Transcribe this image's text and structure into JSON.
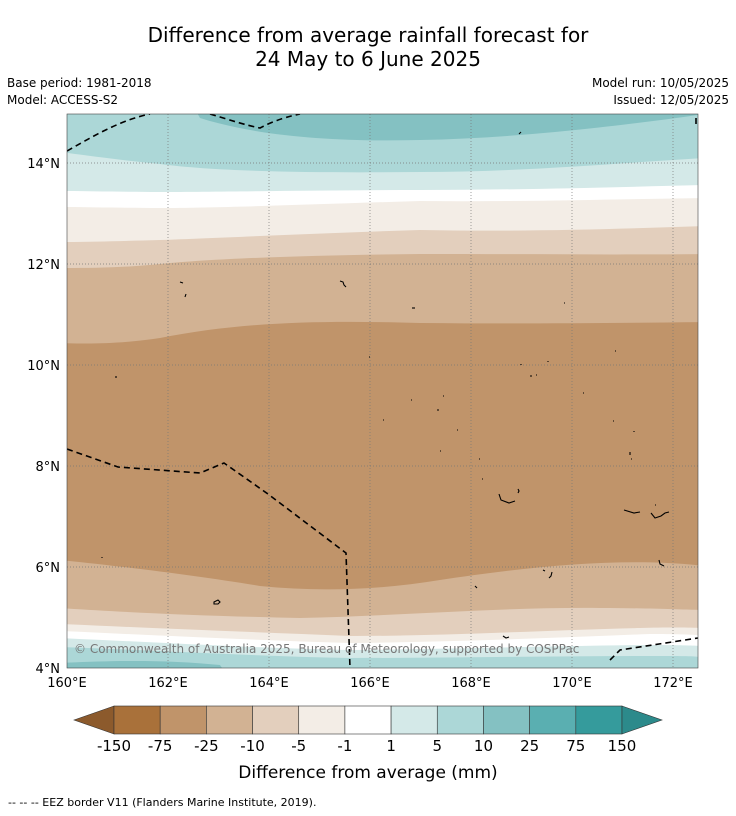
{
  "header": {
    "title_line1": "Difference from average rainfall forecast for",
    "title_line2": "24 May to 6 June 2025",
    "base_period": "Base period: 1981-2018",
    "model": "Model: ACCESS-S2",
    "model_run": "Model run: 10/05/2025",
    "issued": "Issued: 12/05/2025"
  },
  "map": {
    "lat_labels": [
      "14°N",
      "12°N",
      "10°N",
      "8°N",
      "6°N",
      "4°N"
    ],
    "lon_labels": [
      "160°E",
      "162°E",
      "164°E",
      "166°E",
      "168°E",
      "170°E",
      "172°E"
    ],
    "copyright": "© Commonwealth of Australia 2025, Bureau of Meteorology, supported by COSPPac"
  },
  "colorbar": {
    "tick_labels": [
      "-150",
      "-75",
      "-25",
      "-10",
      "-5",
      "-1",
      "1",
      "5",
      "10",
      "25",
      "75",
      "150"
    ],
    "colors": [
      "#a9713a",
      "#c0946a",
      "#d2b293",
      "#e3cfbd",
      "#f3ede6",
      "#ffffff",
      "#d4e9e8",
      "#acd7d7",
      "#84c1c2",
      "#5aafb1",
      "#359b9c"
    ],
    "under_color": "#8c5a2c",
    "over_color": "#2c8a8b",
    "label": "Difference from average (mm)"
  },
  "footnote": "--  --  -- EEZ border V11 (Flanders Marine Institute, 2019)."
}
